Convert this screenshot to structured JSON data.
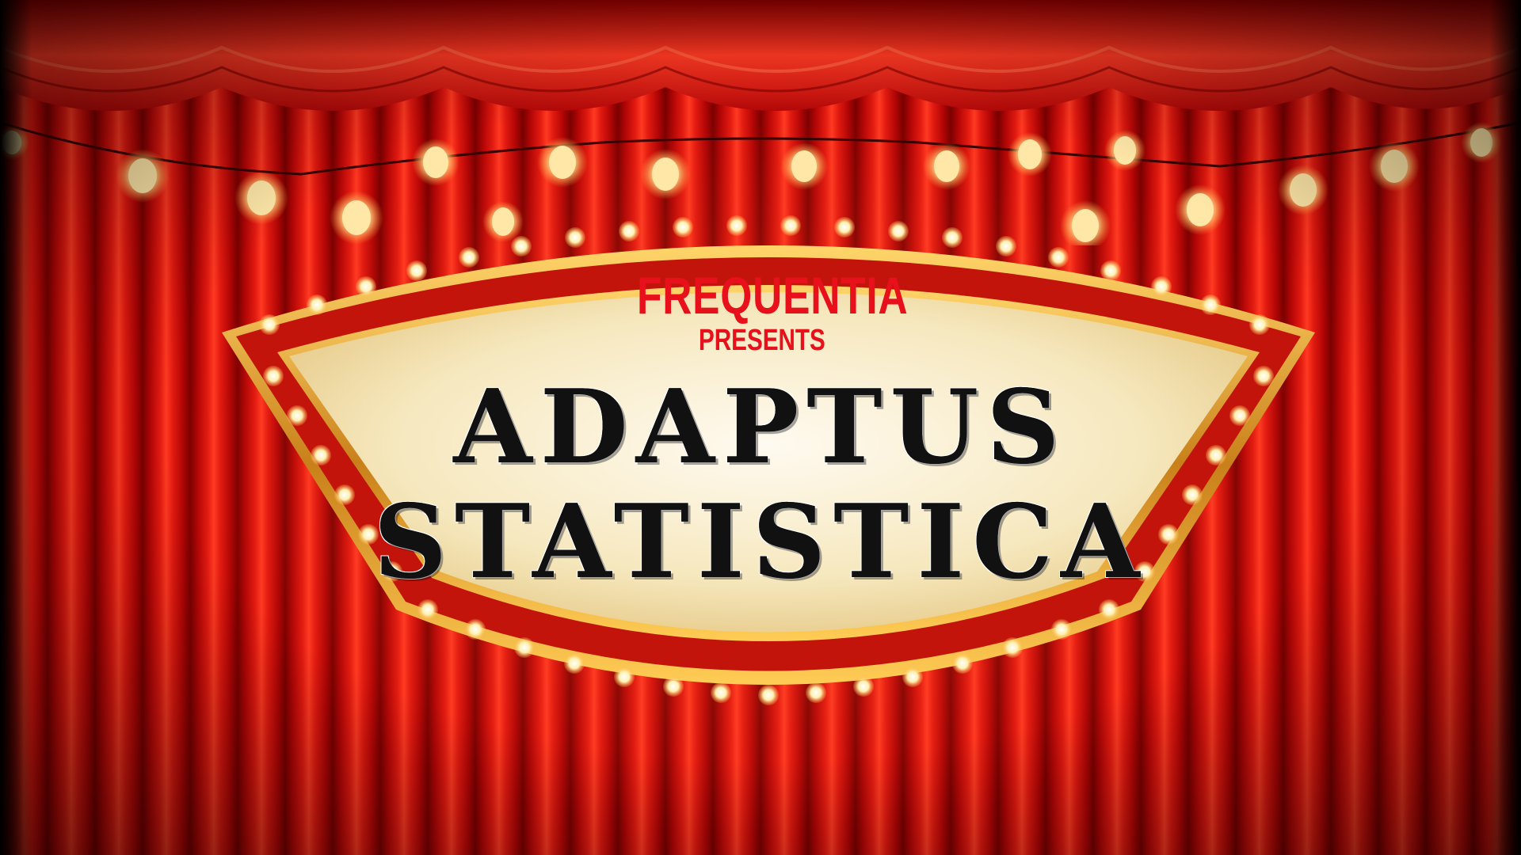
{
  "sign": {
    "brand": "FREQUENTIA",
    "presents": "PRESENTS",
    "title_line_1": "ADAPTUS",
    "title_line_2": "STATISTICA"
  },
  "colors": {
    "curtain_red": "#d4140c",
    "brand_red": "#e8101a",
    "marquee_gold": "#e0a32a",
    "sign_cream": "#f7ecc8",
    "bulb_glow": "#fff1b8",
    "title_black": "#111111"
  }
}
